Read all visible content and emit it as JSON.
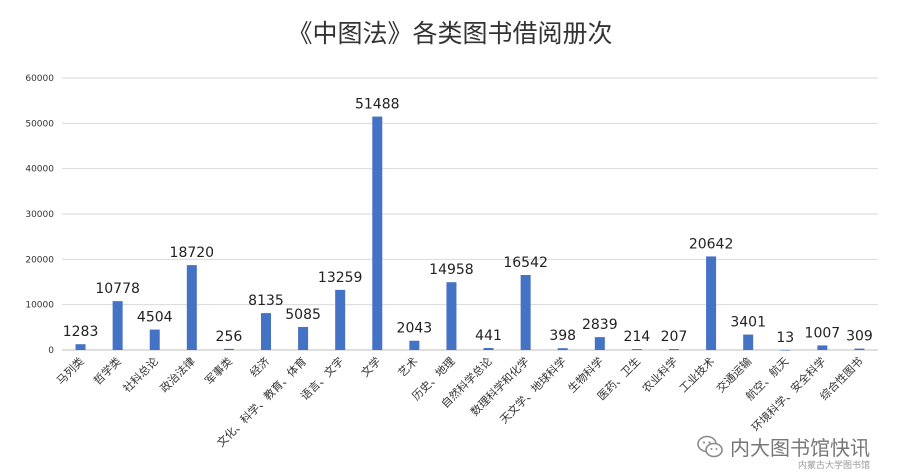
{
  "chart_data": {
    "type": "bar",
    "title": "《中图法》各类图书借阅册次",
    "xlabel": "",
    "ylabel": "",
    "ylim": [
      0,
      60000
    ],
    "yticks": [
      "0",
      "10000",
      "20000",
      "30000",
      "40000",
      "50000",
      "60000"
    ],
    "grid": true,
    "legend": "none",
    "bar_color": "#4472C4",
    "categories": [
      "马列类",
      "哲学类",
      "社科总论",
      "政治法律",
      "军事类",
      "经济",
      "文化、科学、教育、体育",
      "语言、文字",
      "文学",
      "艺术",
      "历史、地理",
      "自然科学总论",
      "数理科学和化学",
      "天文学、地球科学",
      "生物科学",
      "医药、卫生",
      "农业科学",
      "工业技术",
      "交通运输",
      "航空、航天",
      "环境科学、安全科学",
      "综合性图书"
    ],
    "values": [
      1283,
      10778,
      4504,
      18720,
      256,
      8135,
      5085,
      13259,
      51488,
      2043,
      14958,
      441,
      16542,
      398,
      2839,
      214,
      207,
      20642,
      3401,
      13,
      1007,
      309
    ]
  },
  "watermark": {
    "text": "内大图书馆快讯",
    "subtext": "内蒙古大学图书馆",
    "icon": "wechat-icon"
  }
}
